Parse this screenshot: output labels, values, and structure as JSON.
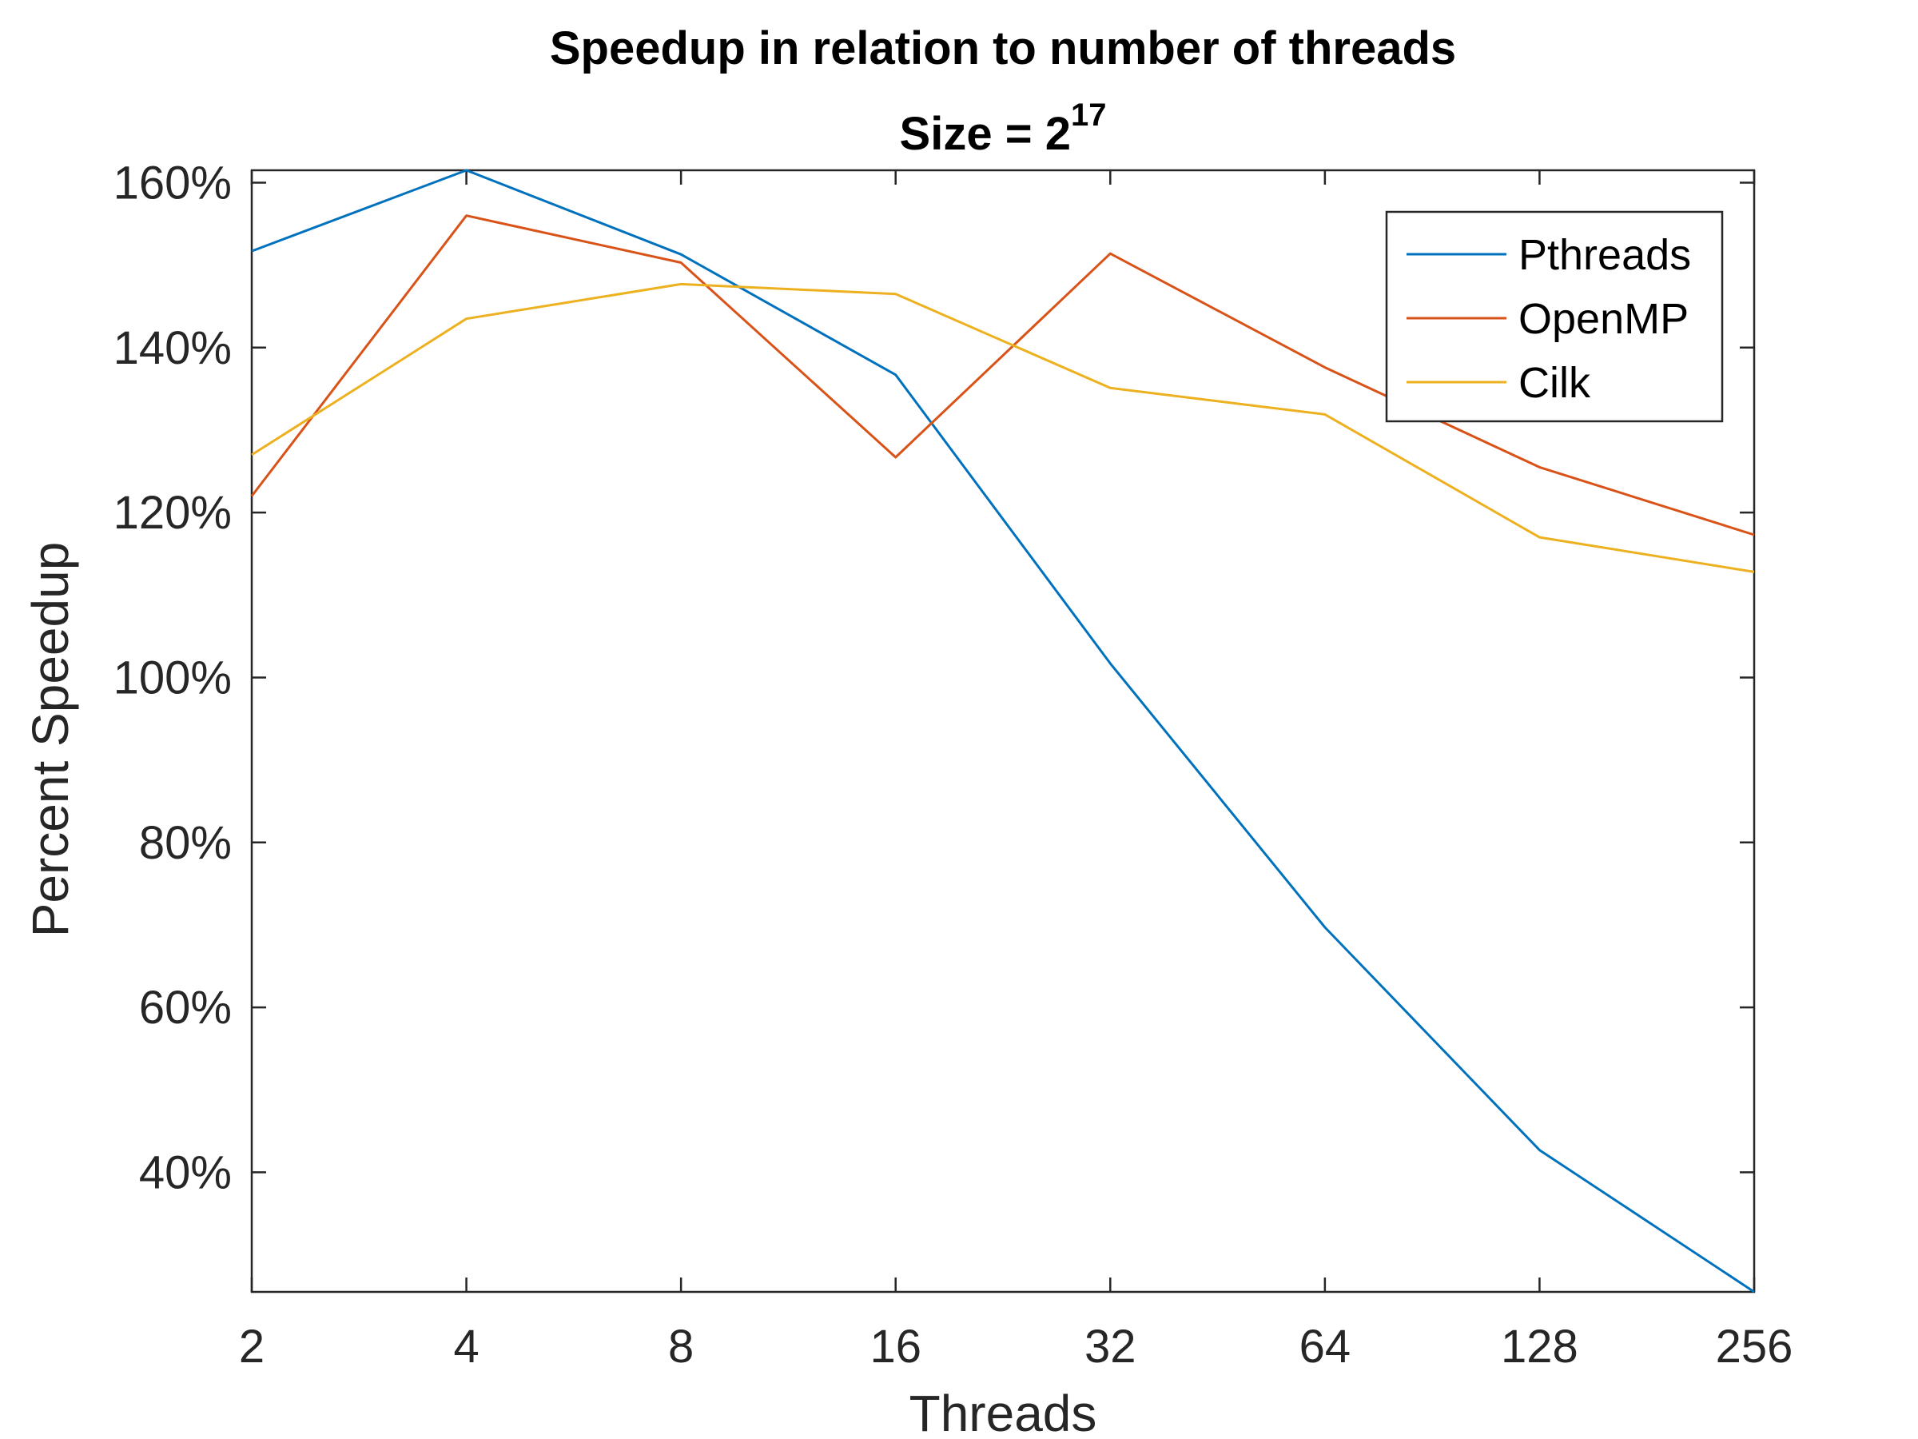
{
  "chart_data": {
    "type": "line",
    "title": "Speedup in relation to number of threads",
    "subtitle_prefix": "Size = 2",
    "subtitle_exponent": "17",
    "xlabel": "Threads",
    "ylabel": "Percent Speedup",
    "x_scale": "log2",
    "x": [
      2,
      4,
      8,
      16,
      32,
      64,
      128,
      256
    ],
    "x_tick_labels": [
      "2",
      "4",
      "8",
      "16",
      "32",
      "64",
      "128",
      "256"
    ],
    "y_ticks": [
      40,
      60,
      80,
      100,
      120,
      140,
      160
    ],
    "y_tick_labels": [
      "40%",
      "60%",
      "80%",
      "100%",
      "120%",
      "140%",
      "160%"
    ],
    "ylim": [
      25.5,
      161.5
    ],
    "xlim": [
      2,
      256
    ],
    "grid": false,
    "legend_position": "top-right",
    "series": [
      {
        "name": "Pthreads",
        "color": "#0072BD",
        "values": [
          151.7,
          161.5,
          151.3,
          136.7,
          101.7,
          69.7,
          42.7,
          25.5
        ]
      },
      {
        "name": "OpenMP",
        "color": "#D95319",
        "values": [
          122.0,
          156.0,
          150.3,
          126.7,
          151.4,
          137.6,
          125.5,
          117.3
        ]
      },
      {
        "name": "Cilk",
        "color": "#EDB120",
        "values": [
          127.0,
          143.5,
          147.7,
          146.5,
          135.1,
          131.9,
          117.0,
          112.8
        ]
      }
    ]
  }
}
